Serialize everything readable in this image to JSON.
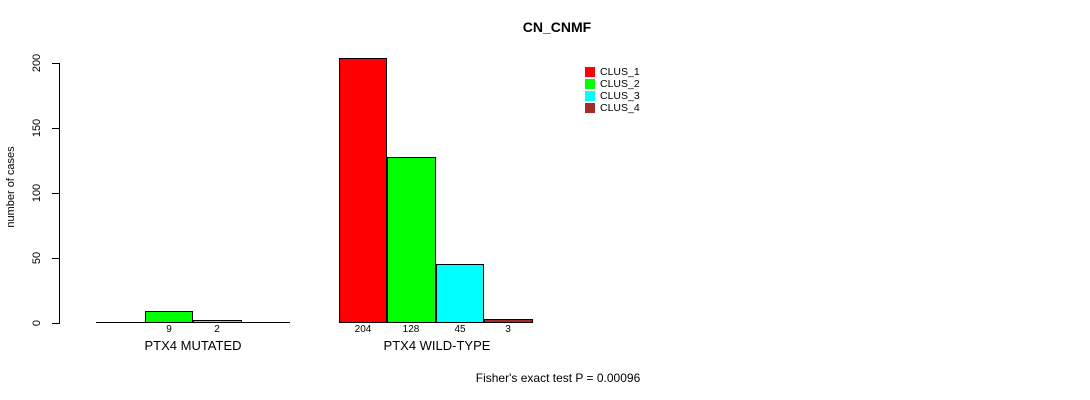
{
  "chart_data": {
    "type": "bar",
    "title": "CN_CNMF",
    "ylabel": "number of cases",
    "xlabel": "",
    "ylim": [
      0,
      200
    ],
    "yticks": [
      0,
      50,
      100,
      150,
      200
    ],
    "categories": [
      "PTX4 MUTATED",
      "PTX4 WILD-TYPE"
    ],
    "series": [
      {
        "name": "CLUS_1",
        "color": "#ff0000",
        "values": [
          0,
          204
        ]
      },
      {
        "name": "CLUS_2",
        "color": "#00ff00",
        "values": [
          9,
          128
        ]
      },
      {
        "name": "CLUS_3",
        "color": "#00ffff",
        "values": [
          2,
          45
        ]
      },
      {
        "name": "CLUS_4",
        "color": "#a52a2a",
        "values": [
          0,
          3
        ]
      }
    ],
    "shown_value_labels": [
      "9",
      "2",
      "204",
      "128",
      "45",
      "3"
    ],
    "legend_position": "top-right",
    "grid": false,
    "footer": "Fisher's exact test P = 0.00096",
    "background": "#ffffff",
    "axis_color": "#000000"
  }
}
